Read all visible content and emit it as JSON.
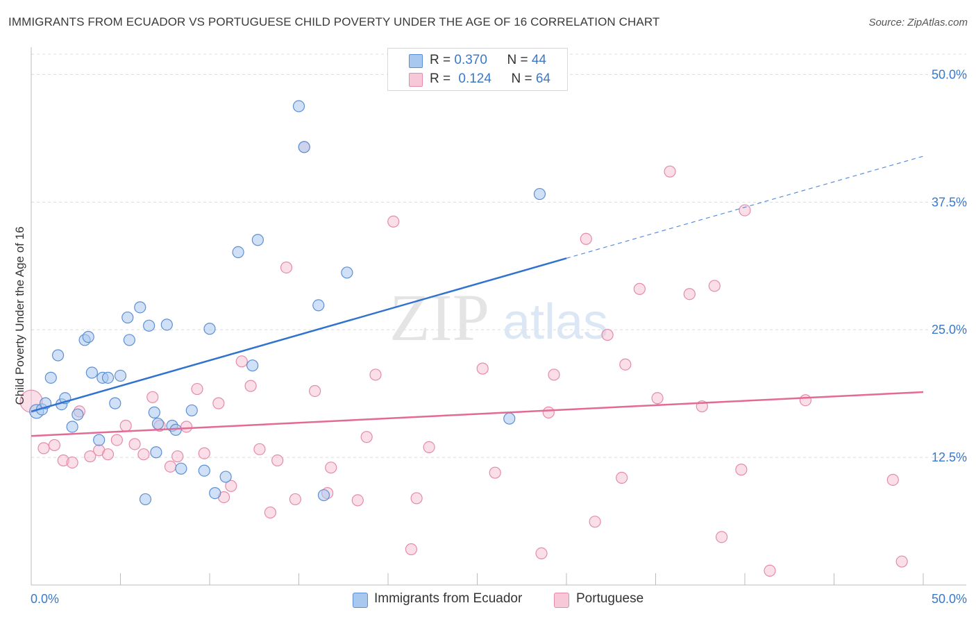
{
  "title": "IMMIGRANTS FROM ECUADOR VS PORTUGUESE CHILD POVERTY UNDER THE AGE OF 16 CORRELATION CHART",
  "source": "Source: ZipAtlas.com",
  "watermark": {
    "zip": "ZIP",
    "atlas": "atlas"
  },
  "legend": {
    "r_label": "R = ",
    "n_label": "N = ",
    "series": [
      {
        "r": "0.370",
        "n": "44"
      },
      {
        "r": "0.124",
        "n": "64"
      }
    ]
  },
  "bottom_legend": [
    "Immigrants from Ecuador",
    "Portuguese"
  ],
  "colors": {
    "blue_fill": "#a9c8f0",
    "blue_stroke": "#5b8fd4",
    "blue_line": "#2f72cf",
    "pink_fill": "#f7b8cb",
    "pink_stroke": "#e58aa8",
    "pink_line": "#e26a93",
    "tick_text": "#3a78c9",
    "grid": "#dcdcdc"
  },
  "chart_data": {
    "type": "scatter",
    "title": "IMMIGRANTS FROM ECUADOR VS PORTUGUESE CHILD POVERTY UNDER THE AGE OF 16 CORRELATION CHART",
    "xlabel": "",
    "ylabel": "Child Poverty Under the Age of 16",
    "xlim": [
      0,
      50
    ],
    "ylim": [
      0,
      52
    ],
    "x_tick_labels": [
      "0.0%",
      "50.0%"
    ],
    "y_ticks": [
      12.5,
      25.0,
      37.5,
      50.0
    ],
    "y_tick_labels": [
      "12.5%",
      "25.0%",
      "37.5%",
      "50.0%"
    ],
    "grid": true,
    "legend_position": "top-center",
    "series": [
      {
        "name": "Immigrants from Ecuador",
        "points": [
          [
            0.3,
            17.0
          ],
          [
            0.6,
            17.2
          ],
          [
            0.8,
            17.8
          ],
          [
            1.1,
            20.3
          ],
          [
            1.5,
            22.5
          ],
          [
            1.7,
            17.7
          ],
          [
            1.9,
            18.3
          ],
          [
            2.3,
            15.5
          ],
          [
            2.6,
            16.7
          ],
          [
            3.0,
            24.0
          ],
          [
            3.2,
            24.3
          ],
          [
            3.4,
            20.8
          ],
          [
            3.8,
            14.2
          ],
          [
            4.0,
            20.3
          ],
          [
            4.3,
            20.3
          ],
          [
            4.7,
            17.8
          ],
          [
            5.0,
            20.5
          ],
          [
            5.4,
            26.2
          ],
          [
            5.5,
            24.0
          ],
          [
            6.1,
            27.2
          ],
          [
            6.4,
            8.4
          ],
          [
            6.6,
            25.4
          ],
          [
            6.9,
            16.9
          ],
          [
            7.1,
            15.8
          ],
          [
            7.0,
            13.0
          ],
          [
            7.6,
            25.5
          ],
          [
            7.9,
            15.6
          ],
          [
            8.1,
            15.2
          ],
          [
            8.4,
            11.4
          ],
          [
            9.0,
            17.1
          ],
          [
            9.7,
            11.2
          ],
          [
            10.0,
            25.1
          ],
          [
            10.3,
            9.0
          ],
          [
            10.9,
            10.6
          ],
          [
            11.6,
            32.6
          ],
          [
            12.4,
            21.5
          ],
          [
            12.7,
            33.8
          ],
          [
            15.0,
            46.9
          ],
          [
            15.3,
            42.9
          ],
          [
            16.1,
            27.4
          ],
          [
            16.4,
            8.8
          ],
          [
            17.7,
            30.6
          ],
          [
            26.8,
            16.3
          ],
          [
            28.5,
            38.3
          ]
        ]
      },
      {
        "name": "Portuguese",
        "points": [
          [
            0.0,
            18.0
          ],
          [
            0.7,
            13.4
          ],
          [
            1.3,
            13.7
          ],
          [
            1.8,
            12.2
          ],
          [
            2.3,
            12.0
          ],
          [
            2.7,
            17.0
          ],
          [
            3.3,
            12.6
          ],
          [
            3.8,
            13.2
          ],
          [
            4.3,
            12.8
          ],
          [
            4.8,
            14.2
          ],
          [
            5.3,
            15.6
          ],
          [
            5.8,
            13.8
          ],
          [
            6.3,
            12.8
          ],
          [
            6.8,
            18.4
          ],
          [
            7.2,
            15.6
          ],
          [
            7.8,
            11.6
          ],
          [
            8.2,
            12.6
          ],
          [
            8.7,
            15.5
          ],
          [
            9.3,
            19.2
          ],
          [
            9.7,
            12.9
          ],
          [
            10.5,
            17.8
          ],
          [
            10.8,
            8.6
          ],
          [
            11.2,
            9.7
          ],
          [
            11.8,
            21.9
          ],
          [
            12.3,
            19.5
          ],
          [
            12.8,
            13.3
          ],
          [
            13.4,
            7.1
          ],
          [
            13.8,
            12.2
          ],
          [
            14.3,
            31.1
          ],
          [
            14.8,
            8.4
          ],
          [
            15.3,
            42.9
          ],
          [
            15.9,
            19.0
          ],
          [
            16.6,
            9.0
          ],
          [
            16.8,
            11.5
          ],
          [
            18.3,
            8.3
          ],
          [
            18.8,
            14.5
          ],
          [
            19.3,
            20.6
          ],
          [
            20.3,
            35.6
          ],
          [
            21.3,
            3.5
          ],
          [
            21.6,
            8.5
          ],
          [
            22.3,
            13.5
          ],
          [
            25.3,
            21.2
          ],
          [
            26.0,
            11.0
          ],
          [
            28.6,
            3.1
          ],
          [
            29.0,
            16.9
          ],
          [
            29.3,
            20.6
          ],
          [
            31.1,
            33.9
          ],
          [
            31.6,
            6.2
          ],
          [
            32.3,
            24.5
          ],
          [
            33.1,
            10.5
          ],
          [
            33.3,
            21.6
          ],
          [
            34.1,
            29.0
          ],
          [
            35.1,
            18.3
          ],
          [
            35.8,
            40.5
          ],
          [
            36.9,
            28.5
          ],
          [
            37.6,
            17.5
          ],
          [
            38.3,
            29.3
          ],
          [
            38.7,
            4.7
          ],
          [
            39.8,
            11.3
          ],
          [
            40.0,
            36.7
          ],
          [
            41.4,
            1.4
          ],
          [
            43.4,
            18.1
          ],
          [
            48.3,
            10.3
          ],
          [
            48.8,
            2.3
          ]
        ]
      }
    ],
    "trendlines": [
      {
        "series": "Immigrants from Ecuador",
        "x0": 0,
        "y0": 17.0,
        "x1": 30.0,
        "y1": 32.0,
        "dashed_to_x": 50,
        "dashed_to_y": 42.0
      },
      {
        "series": "Portuguese",
        "x0": 0,
        "y0": 14.6,
        "x1": 50,
        "y1": 18.9
      }
    ]
  }
}
